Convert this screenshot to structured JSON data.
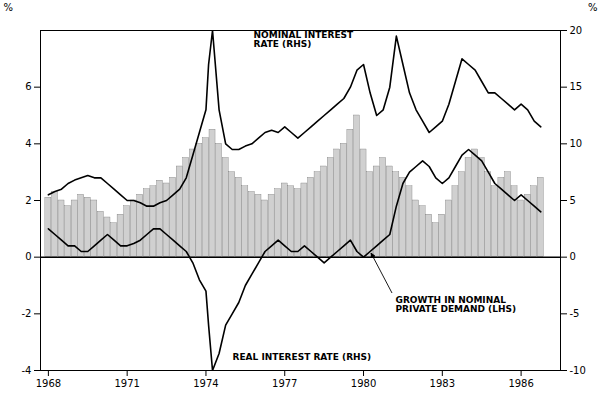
{
  "chart_data": {
    "type": "bar",
    "xlim": [
      1967.7,
      1987.5
    ],
    "xticks": [
      1968,
      1971,
      1974,
      1977,
      1980,
      1983,
      1986
    ],
    "ylim": [
      -4,
      8
    ],
    "yticks": [
      -4,
      -2,
      0,
      2,
      4,
      6
    ],
    "y2lim": [
      -10,
      20
    ],
    "y2ticks": [
      -10,
      -5,
      0,
      5,
      10,
      15,
      20
    ],
    "ylabel": "%",
    "y2label": "%",
    "grid": false,
    "series": [
      {
        "name": "GROWTH IN NOMINAL\nPRIVATE DEMAND (LHS)",
        "type": "bar",
        "color": "#d0d0d0",
        "x": [
          1968.0,
          1968.25,
          1968.5,
          1968.75,
          1969.0,
          1969.25,
          1969.5,
          1969.75,
          1970.0,
          1970.25,
          1970.5,
          1970.75,
          1971.0,
          1971.25,
          1971.5,
          1971.75,
          1972.0,
          1972.25,
          1972.5,
          1972.75,
          1973.0,
          1973.25,
          1973.5,
          1973.75,
          1974.0,
          1974.25,
          1974.5,
          1974.75,
          1975.0,
          1975.25,
          1975.5,
          1975.75,
          1976.0,
          1976.25,
          1976.5,
          1976.75,
          1977.0,
          1977.25,
          1977.5,
          1977.75,
          1978.0,
          1978.25,
          1978.5,
          1978.75,
          1979.0,
          1979.25,
          1979.5,
          1979.75,
          1980.0,
          1980.25,
          1980.5,
          1980.75,
          1981.0,
          1981.25,
          1981.5,
          1981.75,
          1982.0,
          1982.25,
          1982.5,
          1982.75,
          1983.0,
          1983.25,
          1983.5,
          1983.75,
          1984.0,
          1984.25,
          1984.5,
          1984.75,
          1985.0,
          1985.25,
          1985.5,
          1985.75,
          1986.0,
          1986.25,
          1986.5,
          1986.75
        ],
        "values": [
          2.1,
          2.3,
          2.0,
          1.8,
          2.0,
          2.2,
          2.1,
          2.0,
          1.6,
          1.4,
          1.2,
          1.5,
          1.8,
          2.0,
          2.2,
          2.4,
          2.5,
          2.7,
          2.6,
          2.8,
          3.2,
          3.5,
          3.8,
          4.0,
          4.2,
          4.5,
          4.0,
          3.5,
          3.0,
          2.8,
          2.5,
          2.3,
          2.2,
          2.0,
          2.2,
          2.4,
          2.6,
          2.5,
          2.4,
          2.6,
          2.8,
          3.0,
          3.2,
          3.5,
          3.8,
          4.0,
          4.5,
          5.0,
          3.8,
          3.0,
          3.2,
          3.5,
          3.2,
          3.0,
          2.8,
          2.5,
          2.0,
          1.8,
          1.5,
          1.2,
          1.5,
          2.0,
          2.5,
          3.0,
          3.5,
          3.8,
          3.5,
          3.0,
          2.5,
          2.8,
          3.0,
          2.5,
          2.0,
          2.2,
          2.5,
          2.8
        ]
      },
      {
        "name": "NOMINAL INTEREST\nRATE (RHS)",
        "type": "line",
        "color": "black",
        "axis": "y2",
        "x": [
          1968.0,
          1968.25,
          1968.5,
          1968.75,
          1969.0,
          1969.25,
          1969.5,
          1969.75,
          1970.0,
          1970.25,
          1970.5,
          1970.75,
          1971.0,
          1971.25,
          1971.5,
          1971.75,
          1972.0,
          1972.25,
          1972.5,
          1972.75,
          1973.0,
          1973.25,
          1973.5,
          1973.75,
          1974.0,
          1974.1,
          1974.25,
          1974.5,
          1974.75,
          1975.0,
          1975.25,
          1975.5,
          1975.75,
          1976.0,
          1976.25,
          1976.5,
          1976.75,
          1977.0,
          1977.25,
          1977.5,
          1977.75,
          1978.0,
          1978.25,
          1978.5,
          1978.75,
          1979.0,
          1979.25,
          1979.5,
          1979.75,
          1980.0,
          1980.25,
          1980.5,
          1980.75,
          1981.0,
          1981.25,
          1981.5,
          1981.75,
          1982.0,
          1982.25,
          1982.5,
          1982.75,
          1983.0,
          1983.25,
          1983.5,
          1983.75,
          1984.0,
          1984.25,
          1984.5,
          1984.75,
          1985.0,
          1985.25,
          1985.5,
          1985.75,
          1986.0,
          1986.25,
          1986.5,
          1986.75
        ],
        "values": [
          5.5,
          5.8,
          6.0,
          6.5,
          6.8,
          7.0,
          7.2,
          7.0,
          7.0,
          6.5,
          6.0,
          5.5,
          5.0,
          5.0,
          4.8,
          4.5,
          4.5,
          4.8,
          5.0,
          5.5,
          6.0,
          7.0,
          9.0,
          11.0,
          13.0,
          17.0,
          20.0,
          13.0,
          10.0,
          9.5,
          9.5,
          9.8,
          10.0,
          10.5,
          11.0,
          11.2,
          11.0,
          11.5,
          11.0,
          10.5,
          11.0,
          11.5,
          12.0,
          12.5,
          13.0,
          13.5,
          14.0,
          15.0,
          16.5,
          17.0,
          14.5,
          12.5,
          13.0,
          15.0,
          19.5,
          17.0,
          14.5,
          13.0,
          12.0,
          11.0,
          11.5,
          12.0,
          13.5,
          15.5,
          17.5,
          17.0,
          16.5,
          15.5,
          14.5,
          14.5,
          14.0,
          13.5,
          13.0,
          13.5,
          13.0,
          12.0,
          11.5
        ]
      },
      {
        "name": "REAL INTEREST RATE (RHS)",
        "type": "line",
        "color": "black",
        "axis": "y2",
        "x": [
          1968.0,
          1968.25,
          1968.5,
          1968.75,
          1969.0,
          1969.25,
          1969.5,
          1969.75,
          1970.0,
          1970.25,
          1970.5,
          1970.75,
          1971.0,
          1971.25,
          1971.5,
          1971.75,
          1972.0,
          1972.25,
          1972.5,
          1972.75,
          1973.0,
          1973.25,
          1973.5,
          1973.75,
          1974.0,
          1974.1,
          1974.25,
          1974.5,
          1974.75,
          1975.0,
          1975.25,
          1975.5,
          1975.75,
          1976.0,
          1976.25,
          1976.5,
          1976.75,
          1977.0,
          1977.25,
          1977.5,
          1977.75,
          1978.0,
          1978.25,
          1978.5,
          1978.75,
          1979.0,
          1979.25,
          1979.5,
          1979.75,
          1980.0,
          1980.25,
          1980.5,
          1980.75,
          1981.0,
          1981.25,
          1981.5,
          1981.75,
          1982.0,
          1982.25,
          1982.5,
          1982.75,
          1983.0,
          1983.25,
          1983.5,
          1983.75,
          1984.0,
          1984.25,
          1984.5,
          1984.75,
          1985.0,
          1985.25,
          1985.5,
          1985.75,
          1986.0,
          1986.25,
          1986.5,
          1986.75
        ],
        "values": [
          2.5,
          2.0,
          1.5,
          1.0,
          1.0,
          0.5,
          0.5,
          1.0,
          1.5,
          2.0,
          1.5,
          1.0,
          1.0,
          1.2,
          1.5,
          2.0,
          2.5,
          2.5,
          2.0,
          1.5,
          1.0,
          0.5,
          -0.5,
          -2.0,
          -3.0,
          -6.0,
          -10.0,
          -8.5,
          -6.0,
          -5.0,
          -4.0,
          -2.5,
          -1.5,
          -0.5,
          0.5,
          1.0,
          1.5,
          1.0,
          0.5,
          0.5,
          1.0,
          0.5,
          0.0,
          -0.5,
          0.0,
          0.5,
          1.0,
          1.5,
          0.5,
          0.0,
          0.5,
          1.0,
          1.5,
          2.0,
          4.5,
          6.5,
          7.5,
          8.0,
          8.5,
          8.0,
          7.0,
          6.5,
          7.0,
          8.0,
          9.0,
          9.5,
          9.0,
          8.5,
          7.5,
          6.5,
          6.0,
          5.5,
          5.0,
          5.5,
          5.0,
          4.5,
          4.0
        ]
      }
    ]
  }
}
